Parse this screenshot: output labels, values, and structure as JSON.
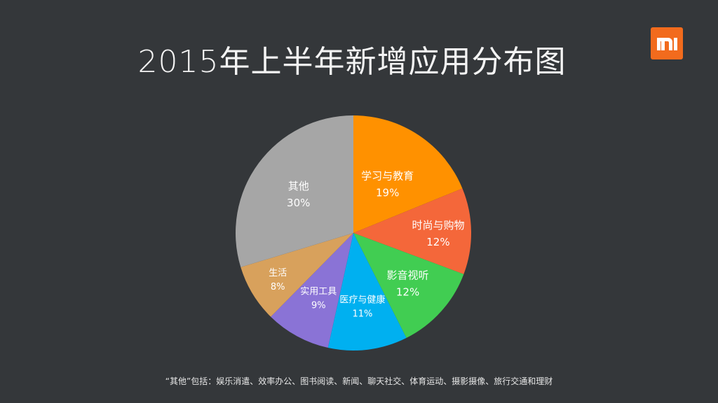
{
  "title": "2015年上半年新增应用分布图",
  "logo": {
    "text": "mi",
    "color": "#f26b1d"
  },
  "footnote": "“其他”包括：娱乐消遣、效率办公、图书阅读、新闻、聊天社交、体育运动、摄影摄像、旅行交通和理财",
  "chart_data": {
    "type": "pie",
    "title": "2015年上半年新增应用分布图",
    "start_angle_deg": 0,
    "direction": "clockwise",
    "slices": [
      {
        "label": "学习与教育",
        "value": 19,
        "display": "19%",
        "color": "#ff9100"
      },
      {
        "label": "时尚与购物",
        "value": 12,
        "display": "12%",
        "color": "#f4673a"
      },
      {
        "label": "影音视听",
        "value": 12,
        "display": "12%",
        "color": "#41cd52"
      },
      {
        "label": "医疗与健康",
        "value": 11,
        "display": "11%",
        "color": "#00b0f0"
      },
      {
        "label": "实用工具",
        "value": 9,
        "display": "9%",
        "color": "#8a73d6"
      },
      {
        "label": "生活",
        "value": 8,
        "display": "8%",
        "color": "#d8a15c"
      },
      {
        "label": "其他",
        "value": 30,
        "display": "30%",
        "color": "#a6a6a6"
      }
    ],
    "legend": "none",
    "unit": "%"
  }
}
